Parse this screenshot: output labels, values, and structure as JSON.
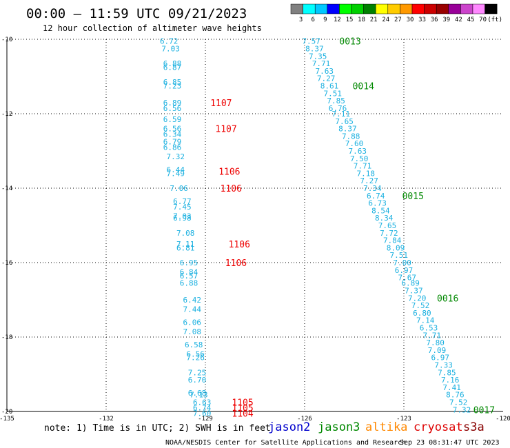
{
  "header": {
    "title": "00:00 – 11:59 UTC 09/21/2023",
    "subtitle": "12 hour collection of altimeter wave heights"
  },
  "legend_scale": {
    "colors": [
      "#808080",
      "#00ffff",
      "#00c8ff",
      "#0000ff",
      "#00ff00",
      "#00d000",
      "#008000",
      "#ffff00",
      "#ffcc00",
      "#ff9900",
      "#ff0000",
      "#cc0000",
      "#990000",
      "#990099",
      "#cc44cc",
      "#ff88ff",
      "#000000"
    ],
    "labels": [
      "3",
      "6",
      "9",
      "12",
      "15",
      "18",
      "21",
      "24",
      "27",
      "30",
      "33",
      "36",
      "39",
      "42",
      "45",
      "70",
      "(ft)"
    ]
  },
  "footer": {
    "note": "note:  1) Time is in UTC; 2) SWH is in feet",
    "credit": "NOAA/NESDIS Center for Satellite Applications and Research",
    "timestamp": "Sep 23 08:31:47 UTC 2023"
  },
  "satellites": [
    {
      "name": "jason2",
      "color": "#0000cc"
    },
    {
      "name": "jason3",
      "color": "#008800"
    },
    {
      "name": "altika",
      "color": "#ff8800"
    },
    {
      "name": "cryosat",
      "color": "#dd0000"
    },
    {
      "name": "s3a",
      "color": "#880000"
    }
  ],
  "chart_data": {
    "type": "scatter",
    "xlim": [
      -135,
      -120
    ],
    "ylim": [
      -20,
      -10
    ],
    "x_ticks": [
      -135,
      -132,
      -129,
      -126,
      -123,
      -120
    ],
    "y_ticks": [
      -10,
      -12,
      -14,
      -16,
      -18,
      -20
    ],
    "grid": true,
    "value_color": "#1ab0e0",
    "series": [
      {
        "name": "cryosat",
        "time_color": "#ee0000",
        "points": [
          {
            "x": -130.1,
            "y": -10.05,
            "value": "6.72"
          },
          {
            "x": -130.05,
            "y": -10.25,
            "value": "7.03"
          },
          {
            "x": -130.0,
            "y": -10.65,
            "value": "6.88"
          },
          {
            "x": -130.0,
            "y": -10.75,
            "value": "6.87"
          },
          {
            "x": -130.0,
            "y": -11.15,
            "value": "6.85"
          },
          {
            "x": -130.0,
            "y": -11.25,
            "value": "7.23"
          },
          {
            "x": -130.0,
            "y": -11.7,
            "value": "6.89"
          },
          {
            "x": -130.0,
            "y": -11.85,
            "value": "6.56"
          },
          {
            "x": -130.0,
            "y": -12.15,
            "value": "6.59"
          },
          {
            "x": -130.0,
            "y": -12.4,
            "value": "6.56"
          },
          {
            "x": -130.0,
            "y": -12.55,
            "value": "6.34"
          },
          {
            "x": -130.0,
            "y": -12.75,
            "value": "6.79"
          },
          {
            "x": -130.0,
            "y": -12.9,
            "value": "6.86"
          },
          {
            "x": -129.9,
            "y": -13.15,
            "value": "7.32"
          },
          {
            "x": -129.9,
            "y": -13.5,
            "value": "6.44"
          },
          {
            "x": -129.9,
            "y": -13.6,
            "value": "7.49"
          },
          {
            "x": -129.8,
            "y": -14.0,
            "value": "7.06"
          },
          {
            "x": -129.7,
            "y": -14.35,
            "value": "6.77"
          },
          {
            "x": -129.7,
            "y": -14.5,
            "value": "7.45"
          },
          {
            "x": -129.7,
            "y": -14.75,
            "value": "7.03"
          },
          {
            "x": -129.7,
            "y": -14.8,
            "value": "6.98"
          },
          {
            "x": -129.6,
            "y": -15.2,
            "value": "7.08"
          },
          {
            "x": -129.6,
            "y": -15.5,
            "value": "7.11"
          },
          {
            "x": -129.6,
            "y": -15.6,
            "value": "6.81"
          },
          {
            "x": -129.5,
            "y": -16.0,
            "value": "6.95"
          },
          {
            "x": -129.5,
            "y": -16.25,
            "value": "6.84"
          },
          {
            "x": -129.5,
            "y": -16.35,
            "value": "6.57"
          },
          {
            "x": -129.5,
            "y": -16.55,
            "value": "6.88"
          },
          {
            "x": -129.4,
            "y": -17.0,
            "value": "6.42"
          },
          {
            "x": -129.4,
            "y": -17.25,
            "value": "7.44"
          },
          {
            "x": -129.4,
            "y": -17.6,
            "value": "6.06"
          },
          {
            "x": -129.4,
            "y": -17.85,
            "value": "7.08"
          },
          {
            "x": -129.35,
            "y": -18.2,
            "value": "6.58"
          },
          {
            "x": -129.3,
            "y": -18.45,
            "value": "6.56"
          },
          {
            "x": -129.3,
            "y": -18.55,
            "value": "7.26"
          },
          {
            "x": -129.25,
            "y": -18.95,
            "value": "7.25"
          },
          {
            "x": -129.25,
            "y": -19.15,
            "value": "6.70"
          },
          {
            "x": -129.25,
            "y": -19.5,
            "value": "6.68"
          },
          {
            "x": -129.2,
            "y": -19.55,
            "value": "7.13"
          },
          {
            "x": -129.1,
            "y": -19.75,
            "value": "6.63"
          },
          {
            "x": -129.1,
            "y": -19.9,
            "value": "6.74"
          },
          {
            "x": -129.1,
            "y": -20.05,
            "value": "7.60"
          }
        ],
        "time_labels": [
          {
            "x": -128.85,
            "y": -11.7,
            "label": "1107"
          },
          {
            "x": -128.7,
            "y": -12.4,
            "label": "1107"
          },
          {
            "x": -128.6,
            "y": -13.55,
            "label": "1106"
          },
          {
            "x": -128.55,
            "y": -14.0,
            "label": "1106"
          },
          {
            "x": -128.3,
            "y": -15.5,
            "label": "1106"
          },
          {
            "x": -128.4,
            "y": -16.0,
            "label": "1106"
          },
          {
            "x": -128.2,
            "y": -19.75,
            "label": "1105"
          },
          {
            "x": -128.2,
            "y": -19.9,
            "label": "1105"
          },
          {
            "x": -128.2,
            "y": -20.05,
            "label": "1104"
          }
        ]
      },
      {
        "name": "jason3",
        "time_color": "#008800",
        "points": [
          {
            "x": -125.8,
            "y": -10.05,
            "value": "7.57"
          },
          {
            "x": -125.7,
            "y": -10.25,
            "value": "8.37"
          },
          {
            "x": -125.6,
            "y": -10.45,
            "value": "7.35"
          },
          {
            "x": -125.5,
            "y": -10.65,
            "value": "7.71"
          },
          {
            "x": -125.4,
            "y": -10.85,
            "value": "7.63"
          },
          {
            "x": -125.35,
            "y": -11.05,
            "value": "7.27"
          },
          {
            "x": -125.25,
            "y": -11.25,
            "value": "8.61"
          },
          {
            "x": -125.15,
            "y": -11.45,
            "value": "7.51"
          },
          {
            "x": -125.05,
            "y": -11.65,
            "value": "7.85"
          },
          {
            "x": -125.0,
            "y": -11.85,
            "value": "6.76"
          },
          {
            "x": -124.9,
            "y": -12.0,
            "value": "7.11"
          },
          {
            "x": -124.8,
            "y": -12.2,
            "value": "7.65"
          },
          {
            "x": -124.7,
            "y": -12.4,
            "value": "8.37"
          },
          {
            "x": -124.6,
            "y": -12.6,
            "value": "7.88"
          },
          {
            "x": -124.5,
            "y": -12.8,
            "value": "7.60"
          },
          {
            "x": -124.4,
            "y": -13.0,
            "value": "7.63"
          },
          {
            "x": -124.35,
            "y": -13.2,
            "value": "7.50"
          },
          {
            "x": -124.25,
            "y": -13.4,
            "value": "7.71"
          },
          {
            "x": -124.15,
            "y": -13.6,
            "value": "7.18"
          },
          {
            "x": -124.05,
            "y": -13.8,
            "value": "7.27"
          },
          {
            "x": -123.95,
            "y": -14.0,
            "value": "7.34"
          },
          {
            "x": -123.85,
            "y": -14.2,
            "value": "6.74"
          },
          {
            "x": -123.8,
            "y": -14.4,
            "value": "6.73"
          },
          {
            "x": -123.7,
            "y": -14.6,
            "value": "8.54"
          },
          {
            "x": -123.6,
            "y": -14.8,
            "value": "8.34"
          },
          {
            "x": -123.5,
            "y": -15.0,
            "value": "7.65"
          },
          {
            "x": -123.45,
            "y": -15.2,
            "value": "7.72"
          },
          {
            "x": -123.35,
            "y": -15.4,
            "value": "7.84"
          },
          {
            "x": -123.25,
            "y": -15.6,
            "value": "8.09"
          },
          {
            "x": -123.15,
            "y": -15.8,
            "value": "7.51"
          },
          {
            "x": -123.05,
            "y": -16.0,
            "value": "7.00"
          },
          {
            "x": -123.0,
            "y": -16.2,
            "value": "6.97"
          },
          {
            "x": -122.9,
            "y": -16.4,
            "value": "7.67"
          },
          {
            "x": -122.8,
            "y": -16.55,
            "value": "6.89"
          },
          {
            "x": -122.7,
            "y": -16.75,
            "value": "7.37"
          },
          {
            "x": -122.6,
            "y": -16.95,
            "value": "7.20"
          },
          {
            "x": -122.5,
            "y": -17.15,
            "value": "7.52"
          },
          {
            "x": -122.45,
            "y": -17.35,
            "value": "6.80"
          },
          {
            "x": -122.35,
            "y": -17.55,
            "value": "7.14"
          },
          {
            "x": -122.25,
            "y": -17.75,
            "value": "6.53"
          },
          {
            "x": -122.15,
            "y": -17.95,
            "value": "7.71"
          },
          {
            "x": -122.05,
            "y": -18.15,
            "value": "7.80"
          },
          {
            "x": -122.0,
            "y": -18.35,
            "value": "7.09"
          },
          {
            "x": -121.9,
            "y": -18.55,
            "value": "6.97"
          },
          {
            "x": -121.8,
            "y": -18.75,
            "value": "7.33"
          },
          {
            "x": -121.7,
            "y": -18.95,
            "value": "7.85"
          },
          {
            "x": -121.6,
            "y": -19.15,
            "value": "7.16"
          },
          {
            "x": -121.55,
            "y": -19.35,
            "value": "7.41"
          },
          {
            "x": -121.45,
            "y": -19.55,
            "value": "8.76"
          },
          {
            "x": -121.35,
            "y": -19.75,
            "value": "7.52"
          },
          {
            "x": -121.25,
            "y": -19.95,
            "value": "7.32"
          }
        ],
        "time_labels": [
          {
            "x": -124.95,
            "y": -10.05,
            "label": "0013"
          },
          {
            "x": -124.55,
            "y": -11.25,
            "label": "0014"
          },
          {
            "x": -123.05,
            "y": -14.2,
            "label": "0015"
          },
          {
            "x": -122.0,
            "y": -16.95,
            "label": "0016"
          },
          {
            "x": -120.9,
            "y": -19.95,
            "label": "0017"
          }
        ]
      }
    ]
  }
}
